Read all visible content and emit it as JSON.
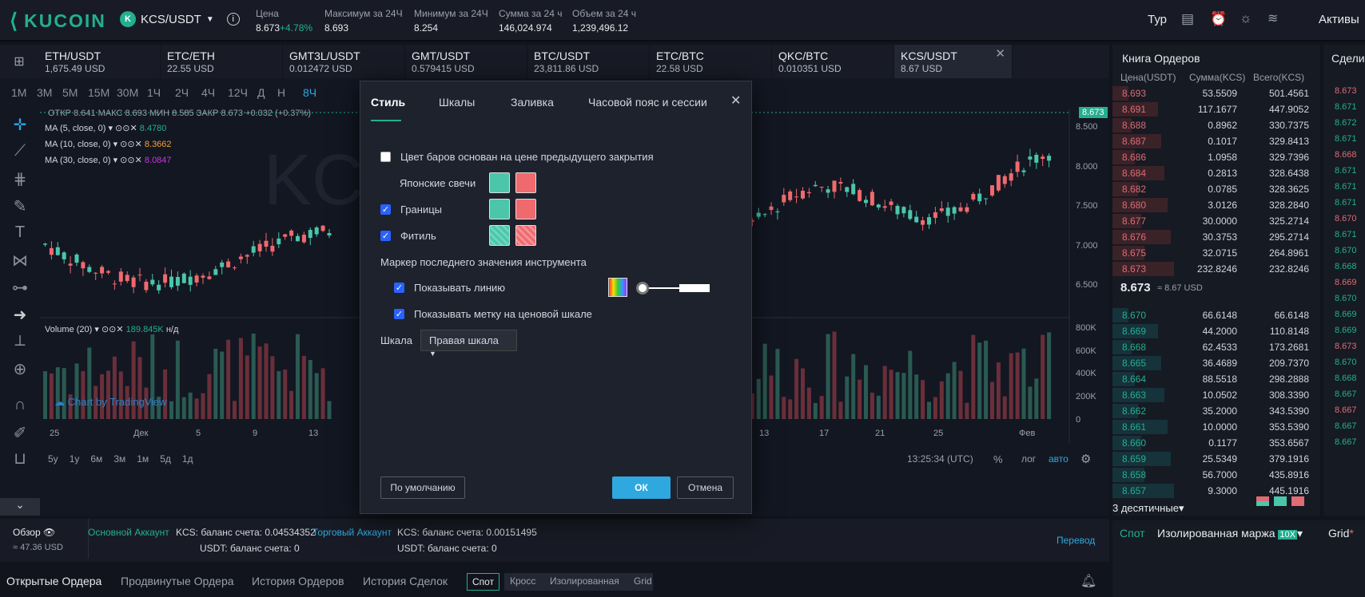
{
  "header": {
    "logo": "KUCOIN",
    "pair": "KCS/USDT",
    "coin_glyph": "K",
    "stats": [
      {
        "label": "Цена",
        "value": "8.673",
        "change": "+4.78%"
      },
      {
        "label": "Максимум за 24Ч",
        "value": "8.693"
      },
      {
        "label": "Минимум за 24Ч",
        "value": "8.254"
      },
      {
        "label": "Сумма за 24 ч",
        "value": "146,024.974"
      },
      {
        "label": "Объем за 24 ч",
        "value": "1,239,496.12"
      }
    ],
    "tour": "Тур",
    "assets": "Активы"
  },
  "pair_tabs": [
    {
      "name": "ETH/USDT",
      "price": "1,675.49 USD"
    },
    {
      "name": "ETC/ETH",
      "price": "22.55 USD"
    },
    {
      "name": "GMT3L/USDT",
      "price": "0.012472 USD"
    },
    {
      "name": "GMT/USDT",
      "price": "0.579415 USD"
    },
    {
      "name": "BTC/USDT",
      "price": "23,811.86 USD"
    },
    {
      "name": "ETC/BTC",
      "price": "22.58 USD"
    },
    {
      "name": "QKC/BTC",
      "price": "0.010351 USD"
    },
    {
      "name": "KCS/USDT",
      "price": "8.67 USD"
    }
  ],
  "timeframes": [
    "1М",
    "3М",
    "5М",
    "15М",
    "30М",
    "1Ч",
    "2Ч",
    "4Ч",
    "12Ч",
    "Д",
    "Н",
    "8Ч"
  ],
  "chart": {
    "ohlc": "ОТКР 8.641  МАКС 8.693  МИН 8.585  ЗАКР 8.673  +0.032 (+0.37%)",
    "ma": [
      {
        "label": "MA (5, close, 0)",
        "value": "8.4780",
        "color": "#23af91"
      },
      {
        "label": "MA (10, close, 0)",
        "value": "8.3662",
        "color": "#f0a030"
      },
      {
        "label": "MA (30, close, 0)",
        "value": "8.0847",
        "color": "#c23ad8"
      }
    ],
    "volume_label": "Volume (20)",
    "volume_value": "189.845K",
    "volume_na": "н/д",
    "watermark": "Chart by TradingView",
    "price_tag": "8.673",
    "price_axis": [
      "8.500",
      "8.000",
      "7.500",
      "7.000",
      "6.500"
    ],
    "vol_axis": [
      "800K",
      "600K",
      "400K",
      "200K",
      "0"
    ],
    "date_axis": [
      "25",
      "Дек",
      "5",
      "9",
      "13",
      "13",
      "17",
      "21",
      "25",
      "Фев"
    ],
    "ranges": [
      "5y",
      "1y",
      "6м",
      "3м",
      "1м",
      "5д",
      "1д"
    ],
    "time": "13:25:34 (UTC)",
    "pct": "%",
    "log": "лог",
    "auto": "авто"
  },
  "modal": {
    "tabs": [
      "Стиль",
      "Шкалы",
      "Заливка",
      "Часовой пояс и сессии"
    ],
    "prev_close": "Цвет баров основан на цене предыдущего закрытия",
    "candles": "Японские свечи",
    "borders": "Границы",
    "wick": "Фитиль",
    "marker": "Маркер последнего значения инструмента",
    "show_line": "Показывать линию",
    "show_label": "Показывать метку на ценовой шкале",
    "scale_label": "Шкала",
    "scale_value": "Правая шкала",
    "default": "По умолчанию",
    "ok": "ОК",
    "cancel": "Отмена",
    "up_color": "#4bc6aa",
    "down_color": "#ef6a6e"
  },
  "orderbook": {
    "title": "Книга Ордеров",
    "cols": [
      "Цена(USDT)",
      "Сумма(KCS)",
      "Всего(KCS)"
    ],
    "asks": [
      [
        "8.693",
        "53.5509",
        "501.4561"
      ],
      [
        "8.691",
        "117.1677",
        "447.9052"
      ],
      [
        "8.688",
        "0.8962",
        "330.7375"
      ],
      [
        "8.687",
        "0.1017",
        "329.8413"
      ],
      [
        "8.686",
        "1.0958",
        "329.7396"
      ],
      [
        "8.684",
        "0.2813",
        "328.6438"
      ],
      [
        "8.682",
        "0.0785",
        "328.3625"
      ],
      [
        "8.680",
        "3.0126",
        "328.2840"
      ],
      [
        "8.677",
        "30.0000",
        "325.2714"
      ],
      [
        "8.676",
        "30.3753",
        "295.2714"
      ],
      [
        "8.675",
        "32.0715",
        "264.8961"
      ],
      [
        "8.673",
        "232.8246",
        "232.8246"
      ]
    ],
    "last": "8.673",
    "last_usd": "≈ 8.67 USD",
    "bids": [
      [
        "8.670",
        "66.6148",
        "66.6148"
      ],
      [
        "8.669",
        "44.2000",
        "110.8148"
      ],
      [
        "8.668",
        "62.4533",
        "173.2681"
      ],
      [
        "8.665",
        "36.4689",
        "209.7370"
      ],
      [
        "8.664",
        "88.5518",
        "298.2888"
      ],
      [
        "8.663",
        "10.0502",
        "308.3390"
      ],
      [
        "8.662",
        "35.2000",
        "343.5390"
      ],
      [
        "8.661",
        "10.0000",
        "353.5390"
      ],
      [
        "8.660",
        "0.1177",
        "353.6567"
      ],
      [
        "8.659",
        "25.5349",
        "379.1916"
      ],
      [
        "8.658",
        "56.7000",
        "435.8916"
      ],
      [
        "8.657",
        "9.3000",
        "445.1916"
      ]
    ],
    "decimals": "3 десятичные",
    "deals_title": "Сдели",
    "deals": [
      "8.673",
      "8.671",
      "8.672",
      "8.671",
      "8.668",
      "8.671",
      "8.671",
      "8.671",
      "8.670",
      "8.671",
      "8.670",
      "8.668",
      "8.669",
      "8.670",
      "8.669",
      "8.669",
      "8.673",
      "8.670",
      "8.668",
      "8.667",
      "8.667",
      "8.667",
      "8.667"
    ]
  },
  "account": {
    "overview": "Обзор",
    "overview_val": "≈ 47.36 USD",
    "main": "Основной Аккаунт",
    "main_kcs": "KCS: баланс счета: 0.04534352",
    "main_usdt": "USDT: баланс счета: 0",
    "trade": "Торговый Аккаунт",
    "trade_kcs": "KCS: баланс счета: 0.00151495",
    "trade_usdt": "USDT: баланс счета: 0",
    "transfer": "Перевод"
  },
  "orders_tabs": [
    "Открытые Ордера",
    "Продвинутые Ордера",
    "История Ордеров",
    "История Сделок"
  ],
  "order_filters": [
    "Спот",
    "Кросс",
    "Изолированная",
    "Grid"
  ],
  "trade_tabs": [
    "Спот",
    "Изолированная маржа",
    "10X",
    "Grid"
  ]
}
